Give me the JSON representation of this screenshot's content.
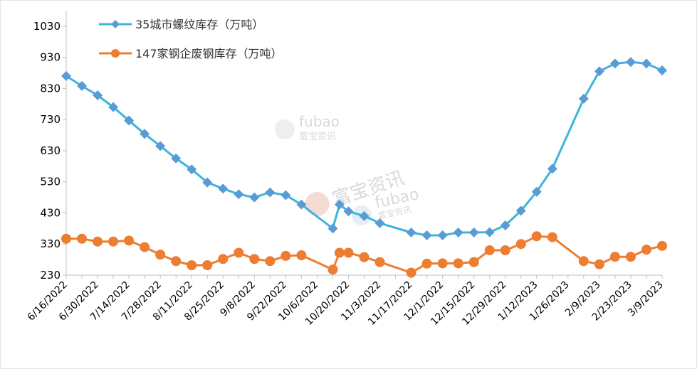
{
  "chart_data": {
    "type": "line",
    "x_tick_labels": [
      "6/16/2022",
      "6/30/2022",
      "7/14/2022",
      "7/28/2022",
      "8/11/2022",
      "8/25/2022",
      "9/8/2022",
      "9/22/2022",
      "10/6/2022",
      "10/20/2022",
      "11/3/2022",
      "11/17/2022",
      "12/1/2022",
      "12/15/2022",
      "12/29/2022",
      "1/12/2023",
      "1/26/2023",
      "2/9/2023",
      "2/23/2023",
      "3/9/2023"
    ],
    "y_ticks": [
      230,
      330,
      430,
      530,
      630,
      730,
      830,
      930,
      1030
    ],
    "ylim": [
      230,
      1080
    ],
    "grid": false,
    "legend_position": "top-left",
    "series": [
      {
        "name": "35城市螺纹库存（万吨）",
        "color": "#3cb4dc",
        "marker_color": "#5b9bd5",
        "marker": "diamond",
        "points": [
          {
            "x": "2022-06-16",
            "y": 870
          },
          {
            "x": "2022-06-23",
            "y": 838
          },
          {
            "x": "2022-06-30",
            "y": 808
          },
          {
            "x": "2022-07-07",
            "y": 770
          },
          {
            "x": "2022-07-14",
            "y": 727
          },
          {
            "x": "2022-07-21",
            "y": 684
          },
          {
            "x": "2022-07-28",
            "y": 645
          },
          {
            "x": "2022-08-04",
            "y": 605
          },
          {
            "x": "2022-08-11",
            "y": 570
          },
          {
            "x": "2022-08-18",
            "y": 528
          },
          {
            "x": "2022-08-25",
            "y": 508
          },
          {
            "x": "2022-09-01",
            "y": 490
          },
          {
            "x": "2022-09-08",
            "y": 480
          },
          {
            "x": "2022-09-15",
            "y": 496
          },
          {
            "x": "2022-09-22",
            "y": 487
          },
          {
            "x": "2022-09-29",
            "y": 457
          },
          {
            "x": "2022-10-13",
            "y": 380
          },
          {
            "x": "2022-10-16",
            "y": 457
          },
          {
            "x": "2022-10-20",
            "y": 435
          },
          {
            "x": "2022-10-27",
            "y": 420
          },
          {
            "x": "2022-11-03",
            "y": 397
          },
          {
            "x": "2022-11-17",
            "y": 367
          },
          {
            "x": "2022-11-24",
            "y": 358
          },
          {
            "x": "2022-12-01",
            "y": 358
          },
          {
            "x": "2022-12-08",
            "y": 367
          },
          {
            "x": "2022-12-15",
            "y": 367
          },
          {
            "x": "2022-12-22",
            "y": 368
          },
          {
            "x": "2022-12-29",
            "y": 390
          },
          {
            "x": "2023-01-05",
            "y": 437
          },
          {
            "x": "2023-01-12",
            "y": 498
          },
          {
            "x": "2023-01-19",
            "y": 572
          },
          {
            "x": "2023-02-02",
            "y": 797
          },
          {
            "x": "2023-02-09",
            "y": 885
          },
          {
            "x": "2023-02-16",
            "y": 910
          },
          {
            "x": "2023-02-23",
            "y": 915
          },
          {
            "x": "2023-03-02",
            "y": 910
          },
          {
            "x": "2023-03-09",
            "y": 888
          }
        ]
      },
      {
        "name": "147家钢企废钢库存（万吨）",
        "color": "#ed7d31",
        "marker_color": "#ed7d31",
        "marker": "circle",
        "points": [
          {
            "x": "2022-06-16",
            "y": 347
          },
          {
            "x": "2022-06-23",
            "y": 347
          },
          {
            "x": "2022-06-30",
            "y": 338
          },
          {
            "x": "2022-07-07",
            "y": 338
          },
          {
            "x": "2022-07-14",
            "y": 341
          },
          {
            "x": "2022-07-21",
            "y": 320
          },
          {
            "x": "2022-07-28",
            "y": 296
          },
          {
            "x": "2022-08-04",
            "y": 275
          },
          {
            "x": "2022-08-11",
            "y": 262
          },
          {
            "x": "2022-08-18",
            "y": 262
          },
          {
            "x": "2022-08-25",
            "y": 282
          },
          {
            "x": "2022-09-01",
            "y": 302
          },
          {
            "x": "2022-09-08",
            "y": 282
          },
          {
            "x": "2022-09-15",
            "y": 275
          },
          {
            "x": "2022-09-22",
            "y": 292
          },
          {
            "x": "2022-09-29",
            "y": 294
          },
          {
            "x": "2022-10-13",
            "y": 248
          },
          {
            "x": "2022-10-16",
            "y": 302
          },
          {
            "x": "2022-10-20",
            "y": 302
          },
          {
            "x": "2022-10-27",
            "y": 288
          },
          {
            "x": "2022-11-03",
            "y": 272
          },
          {
            "x": "2022-11-17",
            "y": 238
          },
          {
            "x": "2022-11-24",
            "y": 267
          },
          {
            "x": "2022-12-01",
            "y": 268
          },
          {
            "x": "2022-12-08",
            "y": 268
          },
          {
            "x": "2022-12-15",
            "y": 272
          },
          {
            "x": "2022-12-22",
            "y": 310
          },
          {
            "x": "2022-12-29",
            "y": 310
          },
          {
            "x": "2023-01-05",
            "y": 330
          },
          {
            "x": "2023-01-12",
            "y": 355
          },
          {
            "x": "2023-01-19",
            "y": 352
          },
          {
            "x": "2023-02-02",
            "y": 275
          },
          {
            "x": "2023-02-09",
            "y": 265
          },
          {
            "x": "2023-02-16",
            "y": 289
          },
          {
            "x": "2023-02-23",
            "y": 289
          },
          {
            "x": "2023-03-02",
            "y": 312
          },
          {
            "x": "2023-03-09",
            "y": 324
          }
        ]
      }
    ]
  },
  "watermark": {
    "brand_latin": "fubao",
    "brand_cn": "富宝资讯",
    "color": "#d9d9d9"
  }
}
